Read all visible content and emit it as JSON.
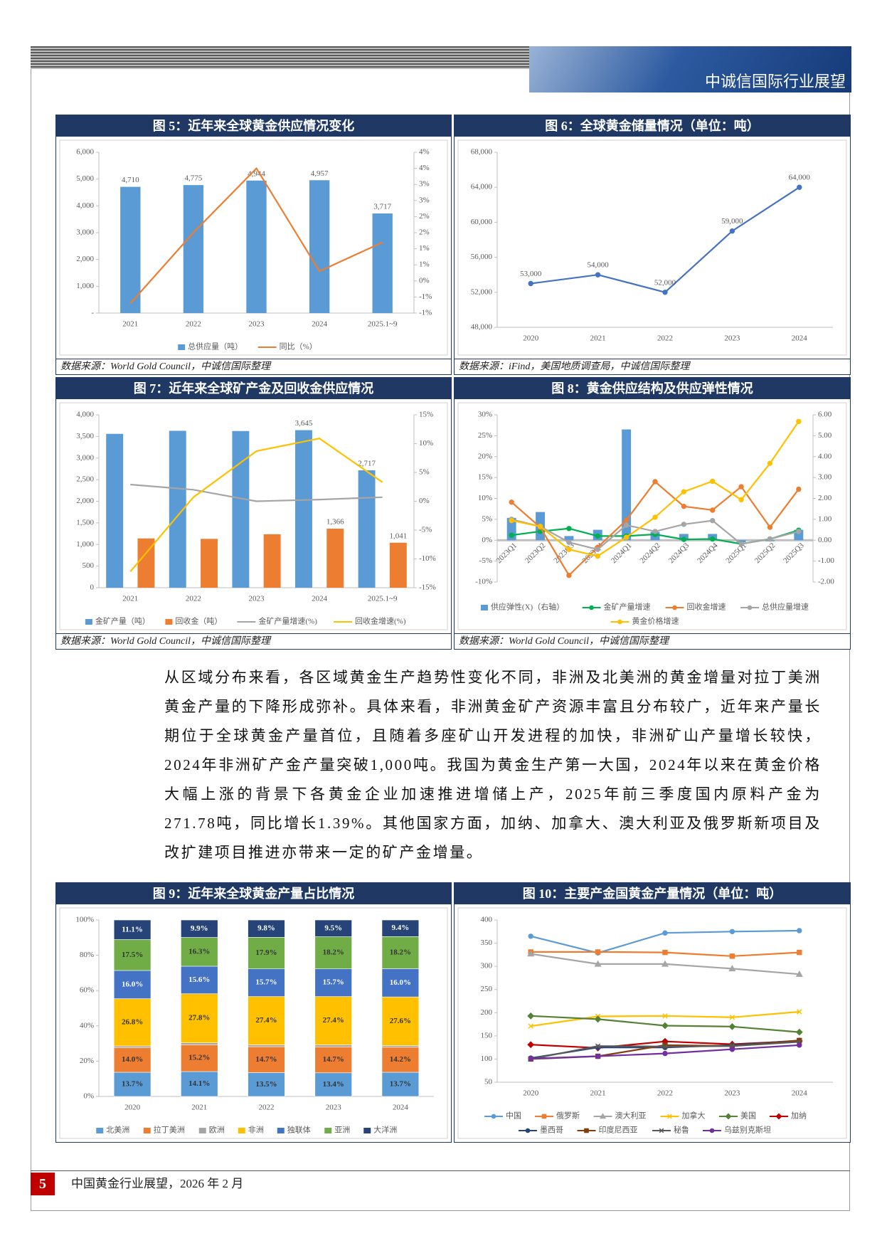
{
  "header": {
    "title": "中诚信国际行业展望"
  },
  "figures": [
    {
      "title": "图 5：近年来全球黄金供应情况变化",
      "source": "数据来源：World Gold Council，中诚信国际整理",
      "chart": {
        "type": "combo",
        "categories": [
          "2021",
          "2022",
          "2023",
          "2024",
          "2025.1~9"
        ],
        "series": [
          {
            "name": "总供应量（吨）",
            "type": "bar",
            "color": "#5b9bd5",
            "values": [
              4710,
              4775,
              4944,
              4957,
              3717
            ],
            "value_labels": [
              "4,710",
              "4,775",
              "4,944",
              "4,957",
              "3,717"
            ]
          },
          {
            "name": "同比（%）",
            "type": "line",
            "axis": "y2",
            "color": "#ed7d31",
            "values": [
              -0.7,
              1.5,
              3.5,
              0.3,
              1.2
            ]
          }
        ],
        "ylim": [
          0,
          6000
        ],
        "yticks": [
          {
            "value": 0,
            "label": "-"
          },
          {
            "value": 1000,
            "label": "1,000"
          },
          {
            "value": 2000,
            "label": "2,000"
          },
          {
            "value": 3000,
            "label": "3,000"
          },
          {
            "value": 4000,
            "label": "4,000"
          },
          {
            "value": 5000,
            "label": "5,000"
          },
          {
            "value": 6000,
            "label": "6,000"
          }
        ],
        "y2lim": [
          -1,
          4
        ],
        "y2ticks": [
          {
            "value": -1,
            "label": "-1%"
          },
          {
            "value": -0.5,
            "label": "-1%"
          },
          {
            "value": 0,
            "label": "0%"
          },
          {
            "value": 0.5,
            "label": "1%"
          },
          {
            "value": 1,
            "label": "1%"
          },
          {
            "value": 1.5,
            "label": "2%"
          },
          {
            "value": 2,
            "label": "2%"
          },
          {
            "value": 2.5,
            "label": "3%"
          },
          {
            "value": 3,
            "label": "3%"
          },
          {
            "value": 3.5,
            "label": "4%"
          },
          {
            "value": 4,
            "label": "4%"
          }
        ],
        "legend": "bottom"
      }
    },
    {
      "title": "图 6：全球黄金储量情况（单位：吨）",
      "source": "数据来源：iFind，美国地质调查局，中诚信国际整理",
      "chart": {
        "type": "line",
        "categories": [
          "2020",
          "2021",
          "2022",
          "2023",
          "2024"
        ],
        "series": [
          {
            "type": "line",
            "color": "#4472c4",
            "marker": "circle",
            "values": [
              53000,
              54000,
              52000,
              59000,
              64000
            ],
            "value_labels": [
              "53,000",
              "54,000",
              "52,000",
              "59,000",
              "64,000"
            ]
          }
        ],
        "ylim": [
          48000,
          68000
        ],
        "yticks": [
          {
            "value": 48000,
            "label": "48,000"
          },
          {
            "value": 52000,
            "label": "52,000"
          },
          {
            "value": 56000,
            "label": "56,000"
          },
          {
            "value": 60000,
            "label": "60,000"
          },
          {
            "value": 64000,
            "label": "64,000"
          },
          {
            "value": 68000,
            "label": "68,000"
          }
        ]
      }
    },
    {
      "title": "图 7：近年来全球矿产金及回收金供应情况",
      "source": "数据来源：World Gold Council，中诚信国际整理",
      "chart": {
        "type": "combo",
        "categories": [
          "2021",
          "2022",
          "2023",
          "2024",
          "2025.1~9"
        ],
        "series": [
          {
            "name": "金矿产量（吨）",
            "type": "bar",
            "color": "#5b9bd5",
            "values": [
              3560,
              3630,
              3625,
              3645,
              2717
            ],
            "value_labels": [
              null,
              null,
              null,
              "3,645",
              "2,717"
            ]
          },
          {
            "name": "回收金（吨）",
            "type": "bar",
            "color": "#ed7d31",
            "values": [
              1140,
              1130,
              1237,
              1366,
              1041
            ],
            "value_labels": [
              null,
              null,
              null,
              "1,366",
              "1,041"
            ]
          },
          {
            "name": "金矿产量增速(%)",
            "type": "line",
            "axis": "y2",
            "color": "#a5a5a5",
            "values": [
              2.9,
              2.0,
              0,
              0.3,
              0.7
            ]
          },
          {
            "name": "回收金增速(%)",
            "type": "line",
            "axis": "y2",
            "color": "#ffc000",
            "values": [
              -12.2,
              0.7,
              8.7,
              10.9,
              3.3
            ]
          }
        ],
        "ylim": [
          0,
          4000
        ],
        "yticks": [
          0,
          500,
          {
            "value": 1000,
            "label": "1,000"
          },
          {
            "value": 1500,
            "label": "1,500"
          },
          {
            "value": 2000,
            "label": "2,000"
          },
          {
            "value": 2500,
            "label": "2,500"
          },
          {
            "value": 3000,
            "label": "3,000"
          },
          {
            "value": 3500,
            "label": "3,500"
          },
          {
            "value": 4000,
            "label": "4,000"
          }
        ],
        "y2lim": [
          -15,
          15
        ],
        "y2ticks": [
          {
            "value": -15,
            "label": "-15%"
          },
          {
            "value": -10,
            "label": "-10%"
          },
          {
            "value": -5,
            "label": "-5%"
          },
          {
            "value": 0,
            "label": "0%"
          },
          {
            "value": 5,
            "label": "5%"
          },
          {
            "value": 10,
            "label": "10%"
          },
          {
            "value": 15,
            "label": "15%"
          }
        ],
        "legend": "bottom"
      }
    },
    {
      "title": "图 8：黄金供应结构及供应弹性情况",
      "source": "数据来源：World Gold Council，中诚信国际整理",
      "chart": {
        "type": "combo",
        "categories": [
          "2023Q1",
          "2023Q2",
          "2023Q3",
          "2023Q4",
          "2024Q1",
          "2024Q2",
          "2024Q3",
          "2024Q4",
          "2025Q1",
          "2025Q2",
          "2025Q3"
        ],
        "series": [
          {
            "name": "供应弹性(X)（右轴）",
            "type": "bar",
            "axis": "y2",
            "color": "#5b9bd5",
            "values": [
              1.07,
              1.35,
              0.2,
              0.5,
              5.3,
              0.4,
              0.3,
              0.3,
              -0.1,
              -0.05,
              0.5
            ]
          },
          {
            "name": "金矿产量增速",
            "type": "line",
            "color": "#00b050",
            "marker": "circle",
            "values": [
              1.2,
              2.1,
              2.8,
              1.0,
              1.0,
              1.4,
              0.2,
              0.3,
              -0.9,
              0.3,
              2.4
            ]
          },
          {
            "name": "回收金增速",
            "type": "line",
            "color": "#ed7d31",
            "marker": "circle",
            "values": [
              9.1,
              3.1,
              -8.4,
              -1.7,
              4.8,
              14.0,
              8.1,
              7.2,
              12.8,
              3.1,
              12.2
            ]
          },
          {
            "name": "总供应量增速",
            "type": "line",
            "color": "#a5a5a5",
            "marker": "circle",
            "values": [
              5.0,
              3.3,
              -0.5,
              -2.2,
              3.6,
              2.1,
              3.8,
              4.7,
              -0.9,
              0.3,
              2.1
            ]
          },
          {
            "name": "黄金价格增速",
            "type": "line",
            "color": "#ffc000",
            "marker": "circle",
            "values": [
              4.7,
              3.3,
              -2.2,
              -3.8,
              0.7,
              5.5,
              11.6,
              14.1,
              9.7,
              18.4,
              28.4
            ]
          }
        ],
        "ylim": [
          -10,
          30
        ],
        "yticks": [
          {
            "value": -10,
            "label": "-10%"
          },
          {
            "value": -5,
            "label": "-5%"
          },
          {
            "value": 0,
            "label": "0%"
          },
          {
            "value": 5,
            "label": "5%"
          },
          {
            "value": 10,
            "label": "10%"
          },
          {
            "value": 15,
            "label": "15%"
          },
          {
            "value": 20,
            "label": "20%"
          },
          {
            "value": 25,
            "label": "25%"
          },
          {
            "value": 30,
            "label": "30%"
          }
        ],
        "y2lim": [
          -2,
          6
        ],
        "y2ticks": [
          {
            "value": -2,
            "label": "-2.00"
          },
          {
            "value": -1,
            "label": "-1.00"
          },
          {
            "value": 0,
            "label": "0.00"
          },
          {
            "value": 1,
            "label": "1.00"
          },
          {
            "value": 2,
            "label": "2.00"
          },
          {
            "value": 3,
            "label": "3.00"
          },
          {
            "value": 4,
            "label": "4.00"
          },
          {
            "value": 5,
            "label": "5.00"
          },
          {
            "value": 6,
            "label": "6.00"
          }
        ],
        "legend": "bottom"
      }
    },
    {
      "title": "图 9：近年来全球黄金产量占比情况",
      "chart": {
        "type": "stacked_bar",
        "categories": [
          "2020",
          "2021",
          "2022",
          "2023",
          "2024"
        ],
        "series": [
          {
            "name": "北美洲",
            "type": "bar",
            "color": "#5b9bd5",
            "values": [
              13.7,
              14.1,
              13.5,
              13.4,
              13.7
            ],
            "value_labels": [
              "13.7%",
              "14.1%",
              "13.5%",
              "13.4%",
              "13.7%"
            ]
          },
          {
            "name": "拉丁美洲",
            "type": "bar",
            "color": "#ed7d31",
            "values": [
              14.0,
              15.2,
              14.7,
              14.7,
              14.2
            ],
            "value_labels": [
              "14.0%",
              "15.2%",
              "14.7%",
              "14.7%",
              "14.2%"
            ]
          },
          {
            "name": "欧洲",
            "type": "bar",
            "color": "#a5a5a5",
            "values": [
              0.9,
              1.1,
              1.0,
              1.1,
              0.9
            ]
          },
          {
            "name": "非洲",
            "type": "bar",
            "color": "#ffc000",
            "values": [
              26.8,
              27.8,
              27.4,
              27.4,
              27.6
            ],
            "value_labels": [
              "26.8%",
              "27.8%",
              "27.4%",
              "27.4%",
              "27.6%"
            ]
          },
          {
            "name": "独联体",
            "type": "bar",
            "color": "#4472c4",
            "values": [
              16.0,
              15.6,
              15.7,
              15.7,
              16.0
            ],
            "value_labels": [
              "16.0%",
              "15.6%",
              "15.7%",
              "15.7%",
              "16.0%"
            ]
          },
          {
            "name": "亚洲",
            "type": "bar",
            "color": "#70ad47",
            "values": [
              17.5,
              16.3,
              17.9,
              18.2,
              18.2
            ],
            "value_labels": [
              "17.5%",
              "16.3%",
              "17.9%",
              "18.2%",
              "18.2%"
            ]
          },
          {
            "name": "大洋洲",
            "type": "bar",
            "color": "#264478",
            "values": [
              11.1,
              9.9,
              9.8,
              9.5,
              9.4
            ],
            "value_labels": [
              "11.1%",
              "9.9%",
              "9.8%",
              "9.5%",
              "9.4%"
            ]
          }
        ],
        "ylim": [
          0,
          100
        ],
        "yticks": [
          {
            "value": 0,
            "label": "0%"
          },
          {
            "value": 20,
            "label": "20%"
          },
          {
            "value": 40,
            "label": "40%"
          },
          {
            "value": 60,
            "label": "60%"
          },
          {
            "value": 80,
            "label": "80%"
          },
          {
            "value": 100,
            "label": "100%"
          }
        ],
        "legend": "bottom"
      }
    },
    {
      "title": "图 10：主要产金国黄金产量情况（单位：吨）",
      "chart": {
        "type": "line",
        "categories": [
          "2020",
          "2021",
          "2022",
          "2023",
          "2024"
        ],
        "series": [
          {
            "name": "中国",
            "type": "line",
            "color": "#5b9bd5",
            "marker": "circle",
            "values": [
              365,
              329,
              372,
              375,
              377
            ]
          },
          {
            "name": "俄罗斯",
            "type": "line",
            "color": "#ed7d31",
            "marker": "square",
            "values": [
              331,
              331,
              330,
              322,
              330
            ]
          },
          {
            "name": "澳大利亚",
            "type": "line",
            "color": "#a5a5a5",
            "marker": "triangle",
            "values": [
              327,
              305,
              305,
              295,
              283
            ]
          },
          {
            "name": "加拿大",
            "type": "line",
            "color": "#ffc000",
            "marker": "cross",
            "values": [
              171,
              192,
              193,
              190,
              202
            ]
          },
          {
            "name": "美国",
            "type": "line",
            "color": "#548235",
            "marker": "diamond",
            "values": [
              193,
              186,
              172,
              170,
              158
            ]
          },
          {
            "name": "加纳",
            "type": "line",
            "color": "#c00000",
            "marker": "diamond",
            "values": [
              131,
              124,
              138,
              132,
              139
            ]
          },
          {
            "name": "墨西哥",
            "type": "line",
            "color": "#264478",
            "marker": "circle",
            "values": [
              102,
              125,
              125,
              130,
              140
            ]
          },
          {
            "name": "印度尼西亚",
            "type": "line",
            "color": "#843c0c",
            "marker": "square",
            "values": [
              100,
              106,
              130,
              128,
              140
            ]
          },
          {
            "name": "秘鲁",
            "type": "line",
            "color": "#595959",
            "marker": "cross",
            "values": [
              100,
              128,
              127,
              128,
              137
            ]
          },
          {
            "name": "乌兹别克斯坦",
            "type": "line",
            "color": "#7030a0",
            "marker": "circle",
            "values": [
              101,
              106,
              112,
              121,
              130
            ]
          }
        ],
        "ylim": [
          50,
          400
        ],
        "yticks": [
          50,
          100,
          150,
          200,
          250,
          300,
          350,
          400
        ],
        "legend": "bottom"
      }
    }
  ],
  "body": {
    "paragraph": "从区域分布来看，各区域黄金生产趋势性变化不同，非洲及北美洲的黄金增量对拉丁美洲黄金产量的下降形成弥补。具体来看，非洲黄金矿产资源丰富且分布较广，近年来产量长期位于全球黄金产量首位，且随着多座矿山开发进程的加快，非洲矿山产量增长较快，2024年非洲矿产金产量突破1,000吨。我国为黄金生产第一大国，2024年以来在黄金价格大幅上涨的背景下各黄金企业加速推进增储上产，2025年前三季度国内原料产金为271.78吨，同比增长1.39%。其他国家方面，加纳、加拿大、澳大利亚及俄罗斯新项目及改扩建项目推进亦带来一定的矿产金增量。"
  },
  "footer": {
    "page": "5",
    "text": "中国黄金行业展望，2026 年 2 月"
  }
}
